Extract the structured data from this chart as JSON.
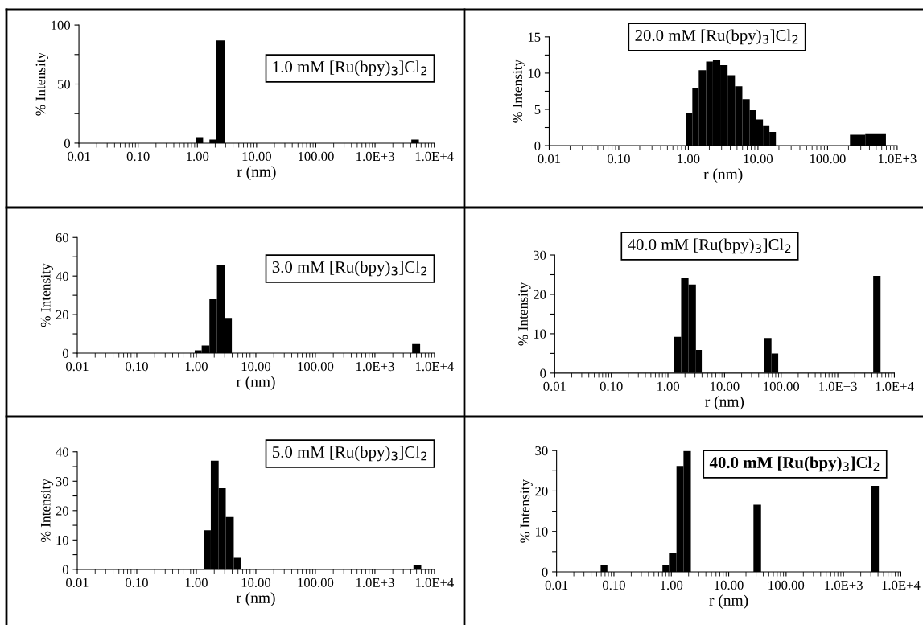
{
  "chart_data": [
    {
      "type": "histogram",
      "annotations": [
        "1.0 mM [Ru(bpy)$_{3}$]Cl$_{2}$"
      ],
      "xlabel": "r (nm)",
      "ylabel": "% Intensity",
      "color": "#000000",
      "bins": [
        0.95,
        1.25,
        1.6,
        2.1,
        2.9,
        4100,
        5500
      ],
      "values": [
        5,
        0,
        3,
        87,
        0,
        3
      ],
      "log": "x",
      "xlim": [
        0.01,
        10000
      ],
      "xticks": [
        {
          "value": 0.01,
          "label": "0.01"
        },
        {
          "value": 0.1,
          "label": "0.10"
        },
        {
          "value": 1,
          "label": "1.00"
        },
        {
          "value": 10,
          "label": "10.00"
        },
        {
          "value": 100,
          "label": "100.00"
        },
        {
          "value": 1000,
          "label": "1.0E+3"
        },
        {
          "value": 10000,
          "label": "1.0E+4"
        }
      ],
      "ylim": [
        0,
        100
      ],
      "yticks": [
        0,
        {
          "value": 25,
          "label": null
        },
        50,
        {
          "value": 75,
          "label": null
        },
        100
      ]
    },
    {
      "type": "histogram",
      "annotations": [
        "20.0 mM [Ru(bpy)$_{3}$]Cl$_{2}$"
      ],
      "xlabel": "r (nm)",
      "ylabel": "% Intensity",
      "color": "#000000",
      "bins": [
        0.92,
        1.14,
        1.41,
        1.8,
        2.25,
        2.87,
        3.66,
        4.67,
        5.96,
        7.61,
        9.44,
        11.8,
        14.6,
        18.1,
        210,
        348,
        690
      ],
      "values": [
        4.5,
        8,
        10.4,
        11.6,
        11.8,
        11.1,
        9.7,
        8.2,
        6.4,
        4.9,
        3.6,
        2.7,
        1.9,
        0,
        1.5,
        1.7
      ],
      "log": "x",
      "xlim": [
        0.01,
        1000
      ],
      "xticks": [
        {
          "value": 0.01,
          "label": "0.01"
        },
        {
          "value": 0.1,
          "label": "0.10"
        },
        {
          "value": 1,
          "label": "1.00"
        },
        {
          "value": 10,
          "label": "10.00"
        },
        {
          "value": 100,
          "label": "100.00"
        },
        {
          "value": 1000,
          "label": "1.0E+3"
        }
      ],
      "ylim": [
        0,
        15
      ],
      "yticks": [
        0,
        {
          "value": 2.5,
          "label": null
        },
        5,
        {
          "value": 7.5,
          "label": null
        },
        10,
        {
          "value": 12.5,
          "label": null
        },
        15
      ]
    },
    {
      "type": "histogram",
      "annotations": [
        "3.0 mM [Ru(bpy)$_{3}$]Cl$_{2}$"
      ],
      "xlabel": "r (nm)",
      "ylabel": "% Intensity",
      "color": "#000000",
      "bins": [
        0.94,
        1.23,
        1.66,
        2.22,
        2.99,
        3.95,
        4220,
        5750
      ],
      "values": [
        1.5,
        4,
        28,
        45.5,
        18.3,
        0,
        4.7
      ],
      "log": "x",
      "xlim": [
        0.01,
        10000
      ],
      "xticks": [
        {
          "value": 0.01,
          "label": "0.01"
        },
        {
          "value": 0.1,
          "label": "0.10"
        },
        {
          "value": 1,
          "label": "1.00"
        },
        {
          "value": 10,
          "label": "10.00"
        },
        {
          "value": 100,
          "label": "100.00"
        },
        {
          "value": 1000,
          "label": "1.0E+3"
        },
        {
          "value": 10000,
          "label": "1.0E+4"
        }
      ],
      "ylim": [
        0,
        60
      ],
      "yticks": [
        0,
        {
          "value": 10,
          "label": null
        },
        20,
        {
          "value": 30,
          "label": null
        },
        40,
        {
          "value": 50,
          "label": null
        },
        60
      ]
    },
    {
      "type": "histogram",
      "annotations": [
        "40.0 mM [Ru(bpy)$_{3}$]Cl$_{2}$"
      ],
      "xlabel": "r (nm)",
      "ylabel": "% Intensity",
      "color": "#000000",
      "bins": [
        1.27,
        1.71,
        2.31,
        3.12,
        3.96,
        50,
        67.4,
        88.7,
        4230,
        5700
      ],
      "values": [
        9.2,
        24.3,
        22.5,
        5.9,
        0,
        8.9,
        5,
        0,
        24.7
      ],
      "log": "x",
      "xlim": [
        0.01,
        10000
      ],
      "xticks": [
        {
          "value": 0.01,
          "label": "0.01"
        },
        {
          "value": 0.1,
          "label": "0.10"
        },
        {
          "value": 1,
          "label": "1.00"
        },
        {
          "value": 10,
          "label": "10.00"
        },
        {
          "value": 100,
          "label": "100.00"
        },
        {
          "value": 1000,
          "label": "1.0E+3"
        },
        {
          "value": 10000,
          "label": "1.0E+4"
        }
      ],
      "ylim": [
        0,
        30
      ],
      "yticks": [
        0,
        {
          "value": 5,
          "label": null
        },
        10,
        {
          "value": 15,
          "label": null
        },
        20,
        {
          "value": 25,
          "label": null
        },
        30
      ]
    },
    {
      "type": "histogram",
      "annotations": [
        "5.0 mM [Ru(bpy)$_{3}$]Cl$_{2}$"
      ],
      "xlabel": "r (nm)",
      "ylabel": "% Intensity",
      "color": "#000000",
      "bins": [
        1.33,
        1.75,
        2.37,
        3.12,
        4.25,
        5.55,
        4440,
        6000
      ],
      "values": [
        13.3,
        37,
        27.6,
        17.8,
        3.9,
        0,
        1.3
      ],
      "log": "x",
      "xlim": [
        0.01,
        10000
      ],
      "xticks": [
        {
          "value": 0.01,
          "label": "0.01"
        },
        {
          "value": 0.1,
          "label": "0.10"
        },
        {
          "value": 1,
          "label": "1.00"
        },
        {
          "value": 10,
          "label": "10.00"
        },
        {
          "value": 100,
          "label": "100.00"
        },
        {
          "value": 1000,
          "label": "1.0E+3"
        },
        {
          "value": 10000,
          "label": "1.0E+4"
        }
      ],
      "ylim": [
        0,
        40
      ],
      "yticks": [
        0,
        {
          "value": 5,
          "label": null
        },
        10,
        {
          "value": 15,
          "label": null
        },
        20,
        {
          "value": 25,
          "label": null
        },
        30,
        {
          "value": 35,
          "label": null
        },
        40
      ]
    },
    {
      "type": "histogram",
      "annotations": [
        "40.0 mM [Ru(bpy)$_{3}$]Cl$_{2}$"
      ],
      "xlabel": "r (nm)",
      "ylabel": "% Intensity",
      "color": "#000000",
      "bins": [
        0.0586,
        0.0769,
        0.7,
        0.91,
        1.23,
        1.63,
        2.19,
        27,
        36.6,
        3080,
        4140
      ],
      "values": [
        1.6,
        0,
        1.6,
        4.6,
        26.2,
        29.9,
        0,
        16.6,
        0,
        21.3
      ],
      "log": "x",
      "xlim": [
        0.01,
        10000
      ],
      "xticks": [
        {
          "value": 0.01,
          "label": "0.01"
        },
        {
          "value": 0.1,
          "label": "0.10"
        },
        {
          "value": 1,
          "label": "1.00"
        },
        {
          "value": 10,
          "label": "10.00"
        },
        {
          "value": 100,
          "label": "100.00"
        },
        {
          "value": 1000,
          "label": "1.0E+3"
        },
        {
          "value": 10000,
          "label": "1.0E+4"
        }
      ],
      "ylim": [
        0,
        30
      ],
      "yticks": [
        0,
        {
          "value": 5,
          "label": null
        },
        10,
        {
          "value": 15,
          "label": null
        },
        20,
        {
          "value": 25,
          "label": null
        },
        30
      ]
    }
  ]
}
